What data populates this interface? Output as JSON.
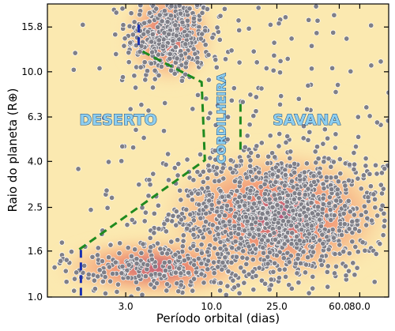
{
  "colors": {
    "background": "#fbe9b0",
    "density_low": "#f7b987",
    "density_mid": "#ee7b63",
    "density_high": "#9b2f7a",
    "points": "#7f7f88",
    "point_edge": "#ffffff",
    "boundary_green": "#1f8a1f",
    "boundary_blue": "#1a2fb0",
    "label_fill": "#8ecff0",
    "label_edge": "#1d4f80"
  },
  "chart_data": {
    "type": "scatter",
    "title": "",
    "xlabel": "Período orbital (dias)",
    "ylabel": "Raio do planeta (R⊕)",
    "xscale": "log",
    "yscale": "log",
    "xlim": [
      1.0,
      120.0
    ],
    "ylim": [
      1.0,
      20.0
    ],
    "xticks": [
      3.0,
      10.0,
      25.0,
      60.0,
      80.0
    ],
    "xtick_labels": [
      "3.0",
      "10.0",
      "25.0",
      "60.0",
      "80.0"
    ],
    "yticks": [
      1.0,
      1.6,
      2.5,
      4.0,
      6.3,
      10.0,
      15.8
    ],
    "ytick_labels": [
      "1.0",
      "1.6",
      "2.5",
      "4.0",
      "6.3",
      "10.0",
      "15.8"
    ],
    "grid": false,
    "clusters": [
      {
        "name": "hot-jupiters",
        "center": [
          5.5,
          14.5
        ],
        "spread_logx": 0.13,
        "spread_logy": 0.1,
        "count": 380
      },
      {
        "name": "super-earths",
        "center": [
          25.0,
          2.3
        ],
        "spread_logx": 0.33,
        "spread_logy": 0.14,
        "count": 1300
      },
      {
        "name": "earths",
        "center": [
          4.5,
          1.35
        ],
        "spread_logx": 0.28,
        "spread_logy": 0.06,
        "count": 250
      },
      {
        "name": "scatter",
        "center": [
          20.0,
          8.0
        ],
        "spread_logx": 0.6,
        "spread_logy": 0.3,
        "count": 180
      }
    ],
    "boundaries": [
      {
        "name": "desert-boundary-green",
        "style": "dashed",
        "points": [
          [
            3.8,
            12.3
          ],
          [
            8.7,
            9.0
          ],
          [
            9.1,
            4.05
          ],
          [
            1.55,
            1.62
          ]
        ]
      },
      {
        "name": "desert-boundary-blue-top",
        "style": "dashed",
        "points": [
          [
            3.6,
            16.2
          ],
          [
            3.6,
            12.7
          ]
        ]
      },
      {
        "name": "desert-boundary-blue-bottom",
        "style": "dashed",
        "points": [
          [
            1.6,
            1.62
          ],
          [
            1.6,
            1.0
          ]
        ]
      },
      {
        "name": "ridge-boundary-right",
        "style": "dashed",
        "points": [
          [
            15.0,
            7.2
          ],
          [
            15.0,
            4.4
          ]
        ]
      }
    ],
    "annotations": [
      {
        "text": "DESERTO",
        "x": 2.7,
        "y": 6.1
      },
      {
        "text": "SAVANA",
        "x": 38.0,
        "y": 6.1
      },
      {
        "text": "CORDILHEIRA",
        "x": 11.5,
        "y": 6.2,
        "rotation": -90
      }
    ]
  }
}
